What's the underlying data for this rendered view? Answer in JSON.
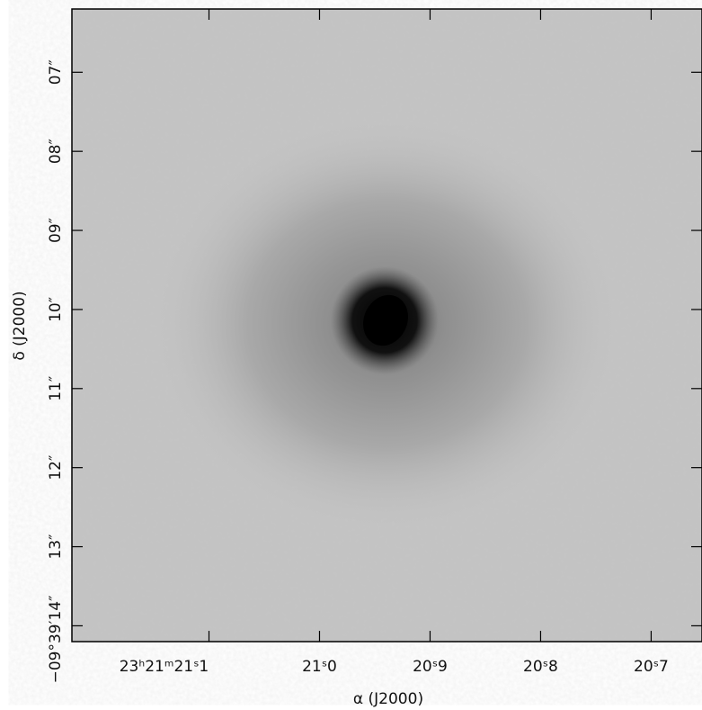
{
  "chart_data": {
    "type": "image",
    "xlabel": "α (J2000)",
    "ylabel": "δ (J2000)",
    "xlim": [
      21.224,
      20.654
    ],
    "xticks": [
      {
        "value": 21.1,
        "label": "23ʰ21ᵐ21ˢ1"
      },
      {
        "value": 21.0,
        "label": "21ˢ0"
      },
      {
        "value": 20.9,
        "label": "20ˢ9"
      },
      {
        "value": 20.8,
        "label": "20ˢ8"
      },
      {
        "value": 20.7,
        "label": "20ˢ7"
      }
    ],
    "ylim": [
      14.2,
      6.2
    ],
    "yticks": [
      {
        "value": 7,
        "label": "07″"
      },
      {
        "value": 8,
        "label": "08″"
      },
      {
        "value": 9,
        "label": "09″"
      },
      {
        "value": 10,
        "label": "10″"
      },
      {
        "value": 11,
        "label": "11″"
      },
      {
        "value": 12,
        "label": "12″"
      },
      {
        "value": 13,
        "label": "13″"
      },
      {
        "value": 14,
        "label": "−09°39′14″"
      }
    ]
  }
}
